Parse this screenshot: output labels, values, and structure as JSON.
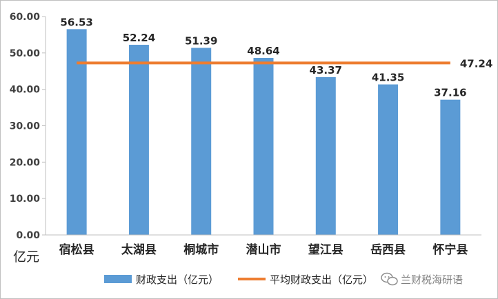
{
  "chart_data": {
    "type": "bar",
    "categories": [
      "宿松县",
      "太湖县",
      "桐城市",
      "潜山市",
      "望江县",
      "岳西县",
      "怀宁县"
    ],
    "series": [
      {
        "name": "财政支出（亿元）",
        "type": "bar",
        "color": "#5b9bd5",
        "values": [
          56.53,
          52.24,
          51.39,
          48.64,
          43.37,
          41.35,
          37.16
        ],
        "data_labels": [
          "56.53",
          "52.24",
          "51.39",
          "48.64",
          "43.37",
          "41.35",
          "37.16"
        ]
      },
      {
        "name": "平均财政支出（亿元）",
        "type": "line",
        "color": "#ed7d31",
        "value": 47.24,
        "data_label": "47.24"
      }
    ],
    "ylim": [
      0,
      60
    ],
    "yticks": [
      "0.00",
      "10.00",
      "20.00",
      "30.00",
      "40.00",
      "50.00",
      "60.00"
    ],
    "unit_label": "亿元",
    "grid": false,
    "legend": "bottom"
  },
  "legend_bar_label": "财政支出（亿元）",
  "legend_line_label": "平均财政支出（亿元）",
  "watermark": "兰财税海研语",
  "watermark_icon": "wechat-icon"
}
